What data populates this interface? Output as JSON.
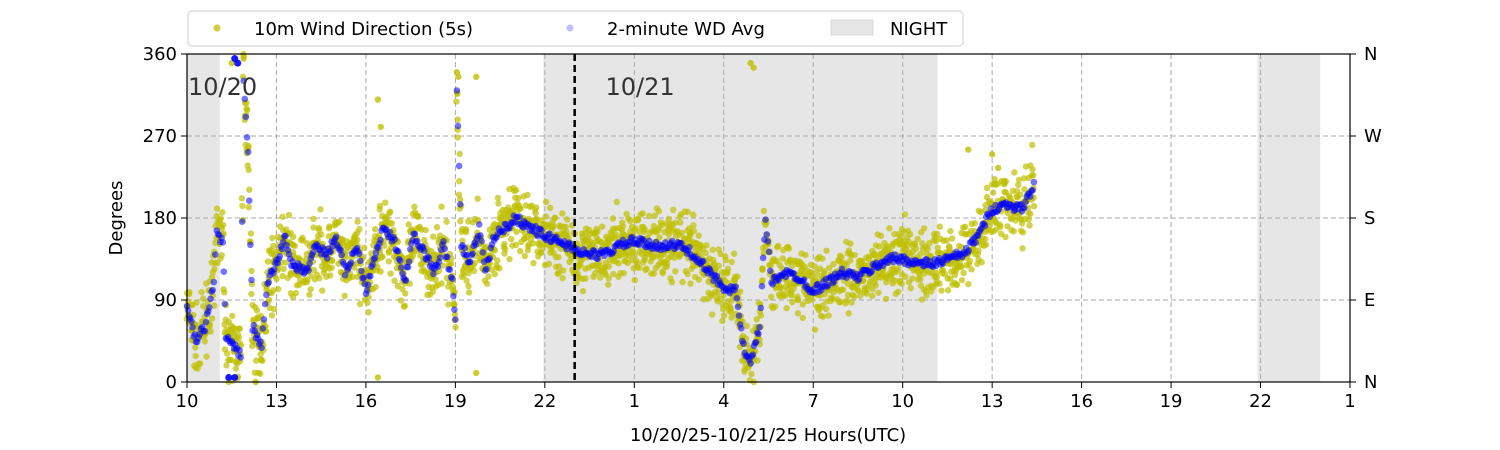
{
  "chart_data": {
    "type": "scatter",
    "xlabel": "10/20/25-10/21/25  Hours(UTC)",
    "ylabel": "Degrees",
    "xlim": [
      10,
      49
    ],
    "ylim": [
      0,
      360
    ],
    "x_ticks": [
      10,
      13,
      16,
      19,
      22,
      25,
      28,
      31,
      34,
      37,
      40,
      43,
      46,
      49
    ],
    "x_tick_labels": [
      "10",
      "13",
      "16",
      "19",
      "22",
      "1",
      "4",
      "7",
      "10",
      "13",
      "16",
      "19",
      "22",
      "1"
    ],
    "y_ticks": [
      0,
      90,
      180,
      270,
      360
    ],
    "y_tick_labels": [
      "0",
      "90",
      "180",
      "270",
      "360"
    ],
    "y2_tick_labels": [
      "N",
      "E",
      "S",
      "W",
      "N"
    ],
    "grid": true,
    "legend": {
      "placement": "top",
      "entries": [
        "10m Wind Direction (5s)",
        "2-minute WD Avg",
        "NIGHT"
      ]
    },
    "colors": {
      "wind": "#bfbf00",
      "avg": "#0000ff",
      "night": "#e6e6e6"
    },
    "night_periods": [
      [
        10,
        11.1
      ],
      [
        21.95,
        35.17
      ],
      [
        45.9,
        48.0
      ]
    ],
    "day_divider": 23.0,
    "day_labels": [
      {
        "text": "10/20",
        "hour": 10
      },
      {
        "text": "10/21",
        "hour": 24
      }
    ],
    "scatter_spread_deg": 28,
    "avg_series": [
      [
        10.0,
        80
      ],
      [
        10.3,
        45
      ],
      [
        10.6,
        60
      ],
      [
        10.9,
        110
      ],
      [
        11.0,
        170
      ],
      [
        11.2,
        150
      ],
      [
        11.3,
        50
      ],
      [
        11.5,
        40
      ],
      [
        11.8,
        30
      ],
      [
        11.9,
        330
      ],
      [
        12.05,
        250
      ],
      [
        12.2,
        60
      ],
      [
        12.5,
        40
      ],
      [
        12.7,
        110
      ],
      [
        13.0,
        130
      ],
      [
        13.3,
        160
      ],
      [
        13.5,
        130
      ],
      [
        14.0,
        120
      ],
      [
        14.3,
        150
      ],
      [
        14.7,
        140
      ],
      [
        15.0,
        160
      ],
      [
        15.3,
        120
      ],
      [
        15.7,
        150
      ],
      [
        16.0,
        100
      ],
      [
        16.3,
        140
      ],
      [
        16.6,
        170
      ],
      [
        17.0,
        150
      ],
      [
        17.3,
        110
      ],
      [
        17.6,
        160
      ],
      [
        18.0,
        140
      ],
      [
        18.3,
        120
      ],
      [
        18.6,
        150
      ],
      [
        18.9,
        110
      ],
      [
        19.0,
        70
      ],
      [
        19.05,
        320
      ],
      [
        19.2,
        150
      ],
      [
        19.5,
        130
      ],
      [
        19.8,
        170
      ],
      [
        20.0,
        120
      ],
      [
        20.3,
        160
      ],
      [
        20.7,
        170
      ],
      [
        21.0,
        180
      ],
      [
        21.5,
        170
      ],
      [
        22.0,
        160
      ],
      [
        22.5,
        155
      ],
      [
        23.0,
        145
      ],
      [
        23.5,
        140
      ],
      [
        24.0,
        140
      ],
      [
        24.5,
        150
      ],
      [
        25.0,
        155
      ],
      [
        25.5,
        150
      ],
      [
        26.0,
        150
      ],
      [
        26.5,
        150
      ],
      [
        27.0,
        140
      ],
      [
        27.5,
        120
      ],
      [
        28.0,
        105
      ],
      [
        28.4,
        100
      ],
      [
        28.7,
        30
      ],
      [
        28.9,
        20
      ],
      [
        29.2,
        60
      ],
      [
        29.4,
        180
      ],
      [
        29.6,
        110
      ],
      [
        30.0,
        120
      ],
      [
        30.5,
        115
      ],
      [
        31.0,
        100
      ],
      [
        31.5,
        110
      ],
      [
        32.0,
        120
      ],
      [
        32.5,
        115
      ],
      [
        33.0,
        125
      ],
      [
        33.5,
        135
      ],
      [
        34.0,
        135
      ],
      [
        34.5,
        130
      ],
      [
        35.0,
        130
      ],
      [
        35.5,
        135
      ],
      [
        36.0,
        140
      ],
      [
        36.3,
        150
      ],
      [
        36.6,
        165
      ],
      [
        37.0,
        190
      ],
      [
        37.5,
        195
      ],
      [
        38.0,
        190
      ],
      [
        38.4,
        215
      ]
    ],
    "wind_outliers": [
      [
        11.5,
        350
      ],
      [
        11.9,
        355
      ],
      [
        12.0,
        300
      ],
      [
        12.3,
        0
      ],
      [
        12.4,
        10
      ],
      [
        16.4,
        310
      ],
      [
        16.5,
        280
      ],
      [
        16.4,
        5
      ],
      [
        19.05,
        340
      ],
      [
        19.1,
        335
      ],
      [
        19.7,
        335
      ],
      [
        19.7,
        10
      ],
      [
        28.9,
        350
      ],
      [
        29.0,
        345
      ],
      [
        36.2,
        255
      ],
      [
        37.0,
        250
      ],
      [
        37.2,
        235
      ]
    ],
    "avg_outliers": [
      [
        11.4,
        5
      ],
      [
        11.6,
        5
      ],
      [
        11.6,
        355
      ],
      [
        11.7,
        350
      ]
    ]
  }
}
